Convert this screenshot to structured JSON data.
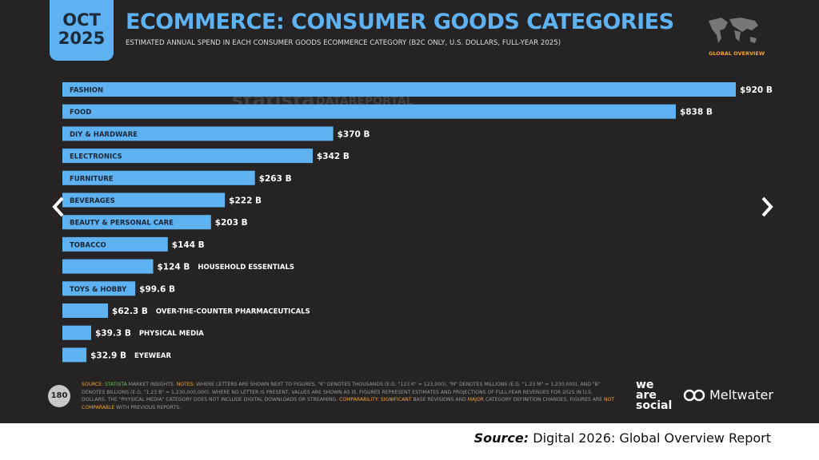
{
  "slide": {
    "date_month": "OCT",
    "date_year": "2025",
    "map_label": "GLOBAL OVERVIEW",
    "watermarks": [
      "statista",
      "DATAREPORTAL"
    ],
    "page_number": "180",
    "footer": [
      "SOURCE:",
      " STATISTA",
      " MARKET INSIGHTS. ",
      "NOTES:",
      " WHERE LETTERS ARE SHOWN NEXT TO FIGURES, \"K\" DENOTES THOUSANDS (E.G. \"123 K\" = 123,000), \"M\" DENOTES MILLIONS (E.G. \"1.23 M\" = 1,230,000), AND \"B\" DENOTES BILLIONS (E.G. \"1.23 B\" = 1,230,000,000). WHERE NO LETTER IS PRESENT, VALUES ARE SHOWN AS IS. FIGURES REPRESENT ESTIMATES AND PROJECTIONS OF FULL-YEAR REVENUES FOR 2025 IN U.S. DOLLARS. THE \"PHYSICAL MEDIA\" CATEGORY DOES NOT INCLUDE DIGITAL DOWNLOADS OR STREAMING. ",
      "COMPARABILITY:",
      " SIGNIFICANT",
      " BASE REVISIONS AND ",
      "MAJOR",
      " CATEGORY DEFINITION CHANGES. FIGURES ARE ",
      "NOT COMPARABLE",
      " WITH PREVIOUS REPORTS."
    ],
    "logo_we": "we",
    "logo_are": "are",
    "logo_social": "social",
    "logo_meltwater": "Meltwater",
    "caption_source": "Source:",
    "caption_text": "Digital 2026: Global Overview Report"
  },
  "chart_data": {
    "type": "bar",
    "orientation": "horizontal",
    "title": "ECOMMERCE: CONSUMER GOODS CATEGORIES",
    "subtitle": "ESTIMATED ANNUAL SPEND IN EACH CONSUMER GOODS ECOMMERCE CATEGORY (B2C ONLY, U.S. DOLLARS, FULL-YEAR 2025)",
    "categories": [
      "FASHION",
      "FOOD",
      "DIY & HARDWARE",
      "ELECTRONICS",
      "FURNITURE",
      "BEVERAGES",
      "BEAUTY & PERSONAL CARE",
      "TOBACCO",
      "HOUSEHOLD ESSENTIALS",
      "TOYS & HOBBY",
      "OVER-THE-COUNTER PHARMACEUTICALS",
      "PHYSICAL MEDIA",
      "EYEWEAR"
    ],
    "values": [
      920,
      838,
      370,
      342,
      263,
      222,
      203,
      144,
      124,
      99.6,
      62.3,
      39.3,
      32.9
    ],
    "value_labels": [
      "$920 B",
      "$838 B",
      "$370 B",
      "$342 B",
      "$263 B",
      "$222 B",
      "$203 B",
      "$144 B",
      "$124 B",
      "$99.6 B",
      "$62.3 B",
      "$39.3 B",
      "$32.9 B"
    ],
    "color": "#5eb2f2"
  }
}
